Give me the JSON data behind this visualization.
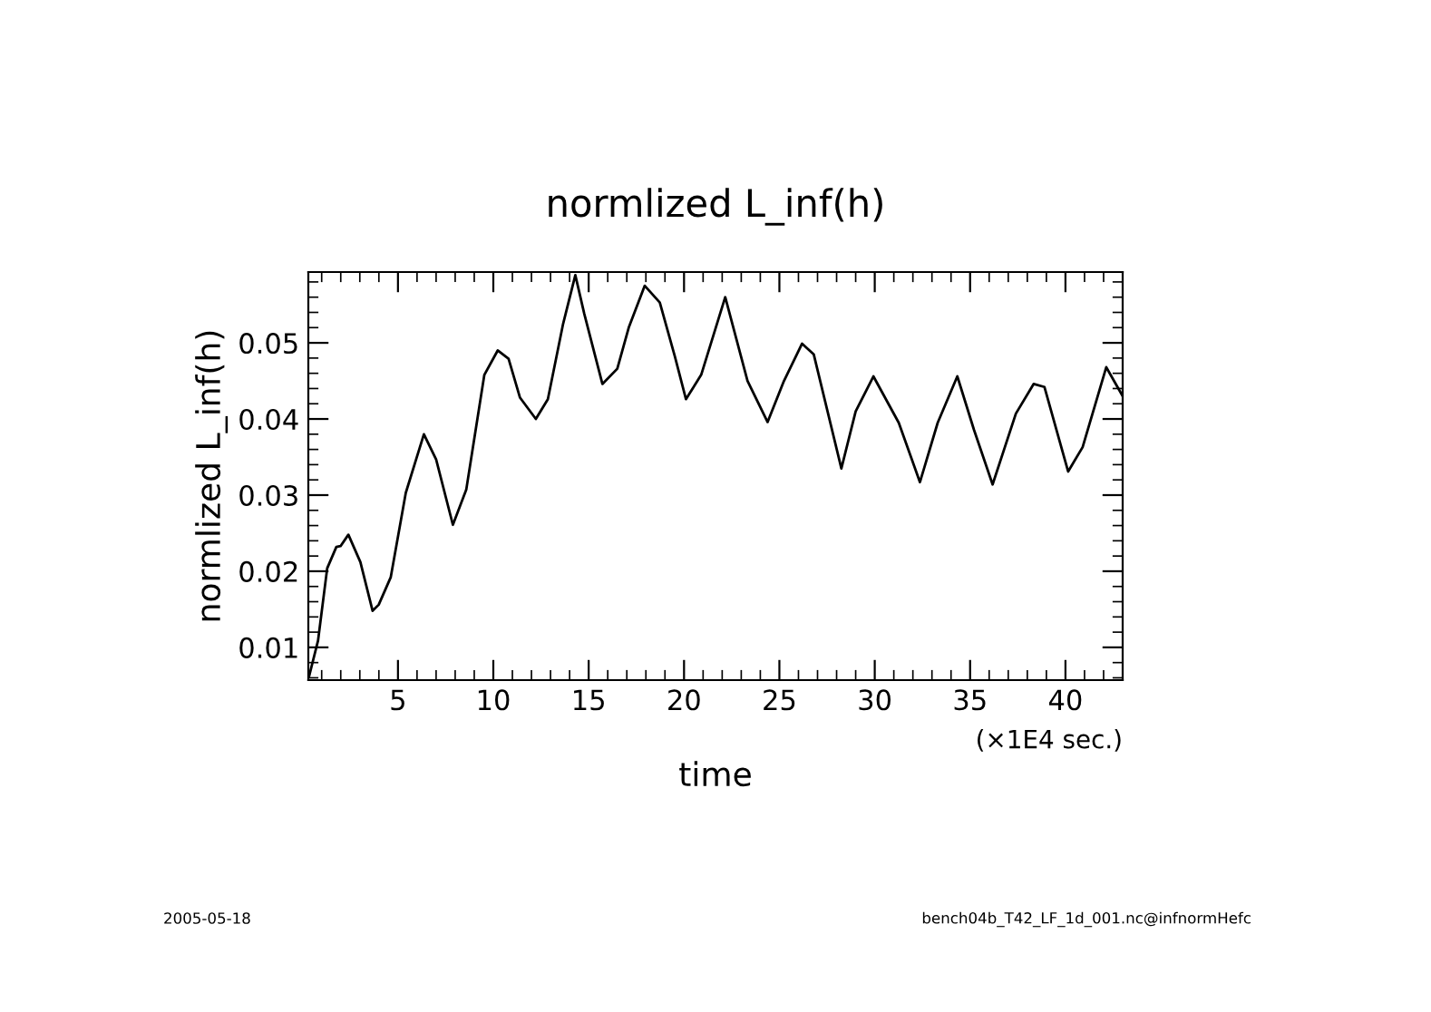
{
  "chart_data": {
    "type": "line",
    "title": "normlized L_inf(h)",
    "xlabel": "time",
    "ylabel": "normlized L_inf(h)",
    "annotations": [
      "(×1E4 sec.)",
      "2005-05-18",
      "bench04b_T42_LF_1d_001.nc@infnormHefc"
    ],
    "x": [
      0.34,
      0.81,
      1.29,
      1.77,
      1.99,
      2.4,
      3.03,
      3.67,
      3.99,
      4.62,
      5.41,
      6.36,
      7.0,
      7.88,
      8.58,
      9.53,
      10.23,
      10.8,
      11.4,
      12.23,
      12.86,
      13.66,
      14.3,
      14.77,
      15.72,
      16.5,
      17.1,
      17.94,
      18.73,
      19.52,
      20.1,
      20.9,
      22.16,
      23.33,
      24.38,
      25.24,
      26.19,
      26.8,
      28.25,
      29.0,
      29.93,
      31.26,
      32.37,
      33.3,
      34.33,
      35.2,
      36.18,
      37.4,
      38.33,
      38.9,
      40.14,
      40.9,
      42.14,
      43.0
    ],
    "series": [
      {
        "color": "#000000",
        "values": [
          0.0062,
          0.0109,
          0.0204,
          0.0232,
          0.0233,
          0.0248,
          0.0212,
          0.0148,
          0.0156,
          0.0192,
          0.0303,
          0.038,
          0.0347,
          0.0261,
          0.0307,
          0.0458,
          0.049,
          0.0479,
          0.0428,
          0.04,
          0.0426,
          0.0525,
          0.0589,
          0.0538,
          0.0446,
          0.0466,
          0.052,
          0.0575,
          0.0553,
          0.0482,
          0.0426,
          0.0458,
          0.056,
          0.045,
          0.0396,
          0.045,
          0.0499,
          0.0485,
          0.0335,
          0.041,
          0.0456,
          0.0395,
          0.0317,
          0.0395,
          0.0456,
          0.0386,
          0.0314,
          0.0407,
          0.0446,
          0.0442,
          0.0331,
          0.0363,
          0.0468,
          0.043
        ]
      }
    ],
    "xlim": [
      0.3,
      43.0
    ],
    "ylim": [
      0.0057,
      0.0593
    ],
    "xticks": [
      5,
      10,
      15,
      20,
      25,
      30,
      35,
      40
    ],
    "yticks": [
      0.01,
      0.02,
      0.03,
      0.04,
      0.05
    ],
    "grid": false,
    "legend": false,
    "marker": "none",
    "line_style": "solid"
  }
}
